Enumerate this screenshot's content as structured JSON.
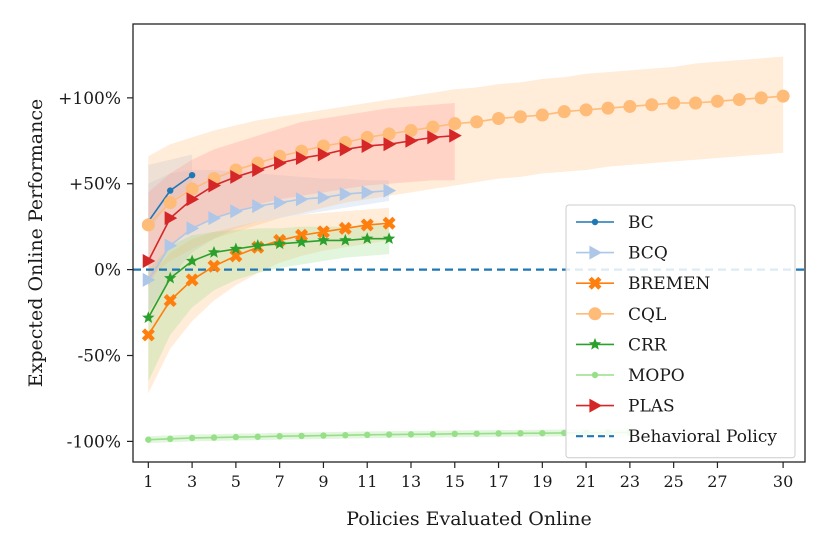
{
  "chart_data": {
    "type": "line",
    "title": "",
    "xlabel": "Policies Evaluated Online",
    "ylabel": "Expected Online Performance",
    "xlim": [
      0.3,
      31.0
    ],
    "ylim": [
      -112,
      143
    ],
    "xticks": [
      1,
      3,
      5,
      7,
      9,
      11,
      13,
      15,
      17,
      19,
      21,
      23,
      25,
      27,
      30
    ],
    "yticks": [
      {
        "value": 100,
        "label": "+100%"
      },
      {
        "value": 50,
        "label": "+50%"
      },
      {
        "value": 0,
        "label": "0%"
      },
      {
        "value": -50,
        "label": "-50%"
      },
      {
        "value": -100,
        "label": "-100%"
      }
    ],
    "legend_position": "lower-right",
    "series": [
      {
        "name": "BC",
        "color": "#1f77b4",
        "marker": "dot",
        "band_color": "#aec7e8",
        "x": [
          1,
          2,
          3
        ],
        "values": [
          28,
          46,
          55
        ],
        "band_low": [
          22,
          40,
          48
        ],
        "band_high": [
          61,
          64,
          67
        ]
      },
      {
        "name": "BCQ",
        "color": "#aec7e8",
        "marker": "triangle-right",
        "band_color": "#aec7e8",
        "x": [
          1,
          2,
          3,
          4,
          5,
          6,
          7,
          8,
          9,
          10,
          11,
          12
        ],
        "values": [
          -6,
          14,
          24,
          30,
          34,
          37,
          39,
          41,
          42,
          44,
          45,
          46
        ],
        "band_low": [
          -25,
          -5,
          10,
          18,
          24,
          28,
          30,
          32,
          34,
          36,
          38,
          40
        ],
        "band_high": [
          50,
          56,
          58,
          58,
          57,
          56,
          55,
          54,
          53,
          53,
          52,
          52
        ]
      },
      {
        "name": "BREMEN",
        "color": "#ff7f0e",
        "marker": "x-filled",
        "band_color": "#ffbb78",
        "x": [
          1,
          2,
          3,
          4,
          5,
          6,
          7,
          8,
          9,
          10,
          11,
          12
        ],
        "values": [
          -38,
          -18,
          -6,
          2,
          8,
          13,
          17,
          20,
          22,
          24,
          26,
          27
        ],
        "band_low": [
          -72,
          -46,
          -30,
          -18,
          -9,
          -2,
          4,
          8,
          11,
          13,
          15,
          17
        ],
        "band_high": [
          -5,
          10,
          18,
          22,
          25,
          28,
          30,
          32,
          33,
          34,
          35,
          36
        ]
      },
      {
        "name": "CQL",
        "color": "#ffbb78",
        "marker": "circle",
        "band_color": "#ffbb78",
        "x": [
          1,
          2,
          3,
          4,
          5,
          6,
          7,
          8,
          9,
          10,
          11,
          12,
          13,
          14,
          15,
          16,
          17,
          18,
          19,
          20,
          21,
          22,
          23,
          24,
          25,
          26,
          27,
          28,
          29,
          30
        ],
        "values": [
          26,
          39,
          47,
          53,
          58,
          62,
          66,
          69,
          72,
          74,
          77,
          79,
          81,
          83,
          85,
          86,
          88,
          89,
          90,
          92,
          93,
          94,
          95,
          96,
          97,
          97,
          98,
          99,
          100,
          101
        ],
        "band_low": [
          -5,
          5,
          12,
          18,
          22,
          26,
          30,
          33,
          36,
          39,
          41,
          43,
          45,
          47,
          49,
          51,
          53,
          54,
          56,
          57,
          58,
          60,
          61,
          62,
          63,
          64,
          65,
          66,
          67,
          68
        ],
        "band_high": [
          66,
          73,
          77,
          81,
          84,
          87,
          89,
          91,
          93,
          95,
          97,
          99,
          101,
          103,
          105,
          106,
          108,
          109,
          111,
          112,
          114,
          115,
          116,
          117,
          118,
          120,
          121,
          122,
          123,
          124
        ]
      },
      {
        "name": "CRR",
        "color": "#2ca02c",
        "marker": "star",
        "band_color": "#98df8a",
        "x": [
          1,
          2,
          3,
          4,
          5,
          6,
          7,
          8,
          9,
          10,
          11,
          12
        ],
        "values": [
          -28,
          -5,
          5,
          10,
          12,
          14,
          15,
          16,
          17,
          17,
          18,
          18
        ],
        "band_low": [
          -65,
          -38,
          -22,
          -12,
          -6,
          -2,
          1,
          3,
          5,
          7,
          8,
          9
        ],
        "band_high": [
          0,
          14,
          20,
          22,
          23,
          24,
          24,
          25,
          25,
          25,
          26,
          26
        ]
      },
      {
        "name": "MOPO",
        "color": "#98df8a",
        "marker": "dot",
        "band_color": "#98df8a",
        "x": [
          1,
          2,
          3,
          4,
          5,
          6,
          7,
          8,
          9,
          10,
          11,
          12,
          13,
          14,
          15,
          16,
          17,
          18,
          19,
          20,
          21,
          22,
          23
        ],
        "values": [
          -99,
          -98.5,
          -98,
          -97.8,
          -97.5,
          -97.3,
          -97,
          -96.8,
          -96.6,
          -96.4,
          -96.2,
          -96,
          -95.9,
          -95.8,
          -95.6,
          -95.5,
          -95.4,
          -95.3,
          -95.2,
          -95.1,
          -95,
          -94.9,
          -94.8
        ],
        "band_low": [
          -101,
          -100.5,
          -100,
          -99.8,
          -99.5,
          -99.3,
          -99,
          -98.8,
          -98.6,
          -98.4,
          -98.2,
          -98,
          -97.9,
          -97.8,
          -97.6,
          -97.5,
          -97.4,
          -97.3,
          -97.2,
          -97.1,
          -97,
          -96.9,
          -96.8
        ],
        "band_high": [
          -97,
          -96.5,
          -96,
          -95.8,
          -95.5,
          -95.3,
          -95,
          -94.8,
          -94.6,
          -94.4,
          -94.2,
          -94,
          -93.9,
          -93.8,
          -93.6,
          -93.5,
          -93.4,
          -93.3,
          -93.2,
          -93.1,
          -93,
          -92.9,
          -92.8
        ]
      },
      {
        "name": "PLAS",
        "color": "#d62728",
        "marker": "triangle-right",
        "band_color": "#ff9896",
        "x": [
          1,
          2,
          3,
          4,
          5,
          6,
          7,
          8,
          9,
          10,
          11,
          12,
          13,
          14,
          15
        ],
        "values": [
          5,
          30,
          41,
          49,
          54,
          58,
          62,
          65,
          67,
          70,
          72,
          73,
          75,
          77,
          78
        ],
        "band_low": [
          -10,
          14,
          24,
          30,
          34,
          38,
          41,
          43,
          45,
          47,
          49,
          50,
          51,
          52,
          52
        ],
        "band_high": [
          45,
          56,
          64,
          70,
          74,
          78,
          82,
          86,
          88,
          90,
          92,
          94,
          95,
          96,
          97
        ]
      },
      {
        "name": "Behavioral Policy",
        "color": "#1f77b4",
        "marker": "none",
        "style": "dashed",
        "x": [
          0.3,
          31.0
        ],
        "values": [
          0,
          0
        ]
      }
    ]
  }
}
